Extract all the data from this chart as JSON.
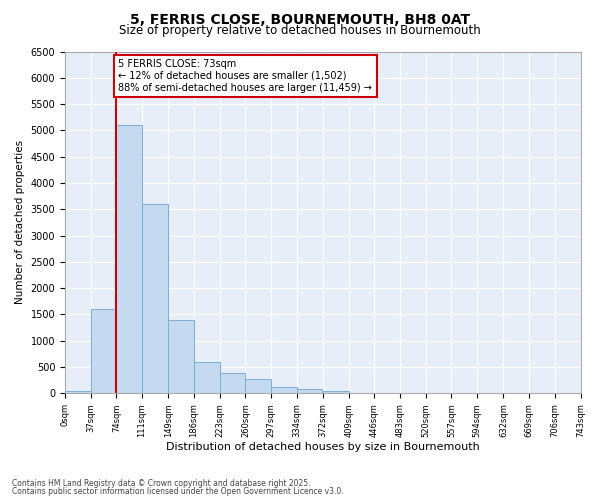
{
  "title_line1": "5, FERRIS CLOSE, BOURNEMOUTH, BH8 0AT",
  "title_line2": "Size of property relative to detached houses in Bournemouth",
  "xlabel": "Distribution of detached houses by size in Bournemouth",
  "ylabel": "Number of detached properties",
  "bar_color": "#c5d9f0",
  "bar_edge_color": "#7bafd4",
  "annotation_line_color": "#cc0000",
  "annotation_box_color": "#cc0000",
  "annotation_text": "5 FERRIS CLOSE: 73sqm\n← 12% of detached houses are smaller (1,502)\n88% of semi-detached houses are larger (11,459) →",
  "property_line_x": 73,
  "bin_edges": [
    0,
    37,
    74,
    111,
    149,
    186,
    223,
    260,
    297,
    334,
    372,
    409,
    446,
    483,
    520,
    557,
    594,
    632,
    669,
    706,
    743
  ],
  "categories": [
    "0sqm",
    "37sqm",
    "74sqm",
    "111sqm",
    "149sqm",
    "186sqm",
    "223sqm",
    "260sqm",
    "297sqm",
    "334sqm",
    "372sqm",
    "409sqm",
    "446sqm",
    "483sqm",
    "520sqm",
    "557sqm",
    "594sqm",
    "632sqm",
    "669sqm",
    "706sqm",
    "743sqm"
  ],
  "values": [
    50,
    1600,
    5100,
    3600,
    1400,
    600,
    380,
    280,
    120,
    80,
    40,
    0,
    0,
    0,
    0,
    0,
    0,
    0,
    0,
    0,
    0
  ],
  "ylim": [
    0,
    6500
  ],
  "yticks": [
    0,
    500,
    1000,
    1500,
    2000,
    2500,
    3000,
    3500,
    4000,
    4500,
    5000,
    5500,
    6000,
    6500
  ],
  "fig_background": "#ffffff",
  "ax_background": "#e8eef8",
  "grid_color": "#ffffff",
  "footer_line1": "Contains HM Land Registry data © Crown copyright and database right 2025.",
  "footer_line2": "Contains public sector information licensed under the Open Government Licence v3.0."
}
